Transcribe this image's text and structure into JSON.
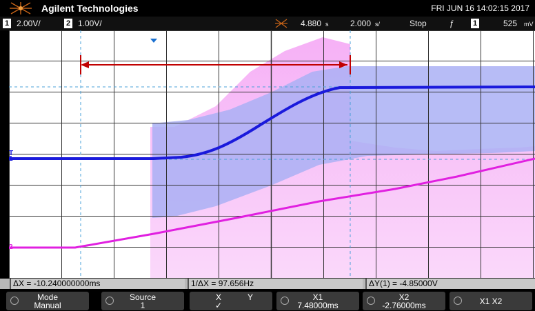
{
  "header": {
    "brand": "Agilent Technologies",
    "datetime": "FRI JUN 16 14:02:15 2017"
  },
  "status": {
    "ch1_num": "1",
    "ch1_scale": "2.00V/",
    "ch2_num": "2",
    "ch2_scale": "1.00V/",
    "time_delay": "4.880",
    "time_scale": "2.000",
    "run_state": "Stop",
    "trigger_slope": "ƒ",
    "trigger_source": "1",
    "trigger_level": "525"
  },
  "markers": {
    "ch1_marker": "1",
    "ch2_marker": "2",
    "trigger_marker": "T"
  },
  "measurements": {
    "delta_x": "ΔX = -10.240000000ms",
    "inv_delta_x": "1/ΔX = 97.656Hz",
    "delta_y": "ΔY(1) = -4.85000V"
  },
  "softkeys": [
    {
      "line1": "Mode",
      "line2": "Manual"
    },
    {
      "line1": "Source",
      "line2": "1"
    },
    {
      "line1": "X",
      "line2": "Y"
    },
    {
      "line1": "X1",
      "line2": "7.48000ms"
    },
    {
      "line1": "X2",
      "line2": "-2.76000ms"
    },
    {
      "line1": "X1 X2",
      "line2": ""
    }
  ],
  "colors": {
    "ch1": "#1a1adc",
    "ch1_light": "#aab0f5",
    "ch2": "#e020e0",
    "ch2_light": "#f5a8f5",
    "cursor_arrow": "#c00000",
    "background": "#ffffff",
    "grid": "#333333"
  }
}
